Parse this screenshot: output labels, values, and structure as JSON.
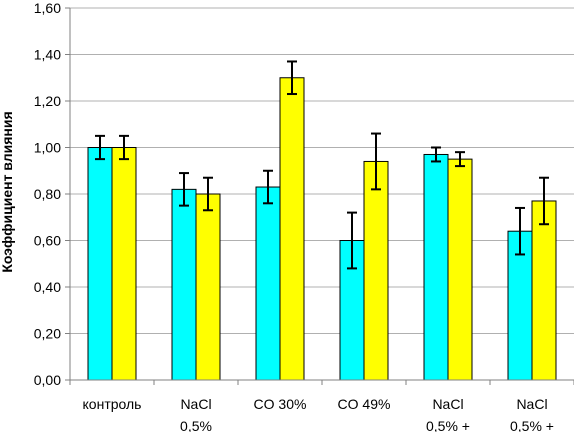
{
  "chart_data": {
    "type": "bar",
    "title": "",
    "xlabel": "",
    "ylabel": "Коэффициент влияния",
    "ylim": [
      0,
      1.6
    ],
    "ytick_step": 0.2,
    "ytick_labels": [
      "0,00",
      "0,20",
      "0,40",
      "0,60",
      "0,80",
      "1,00",
      "1,20",
      "1,40",
      "1,60"
    ],
    "grid": true,
    "legend": "none",
    "categories": [
      [
        "контроль"
      ],
      [
        "NaCl",
        "0,5%"
      ],
      [
        "CO 30%"
      ],
      [
        "CO 49%"
      ],
      [
        "NaCl",
        "0,5% +"
      ],
      [
        "NaCl",
        "0,5% +"
      ]
    ],
    "series": [
      {
        "color": "#00FFFF",
        "values": [
          1.0,
          0.82,
          0.83,
          0.6,
          0.97,
          0.64
        ],
        "errors": [
          0.05,
          0.07,
          0.07,
          0.12,
          0.03,
          0.1
        ]
      },
      {
        "color": "#FFFF00",
        "values": [
          1.0,
          0.8,
          1.3,
          0.94,
          0.95,
          0.77
        ],
        "errors": [
          0.05,
          0.07,
          0.07,
          0.12,
          0.03,
          0.1
        ]
      }
    ]
  }
}
